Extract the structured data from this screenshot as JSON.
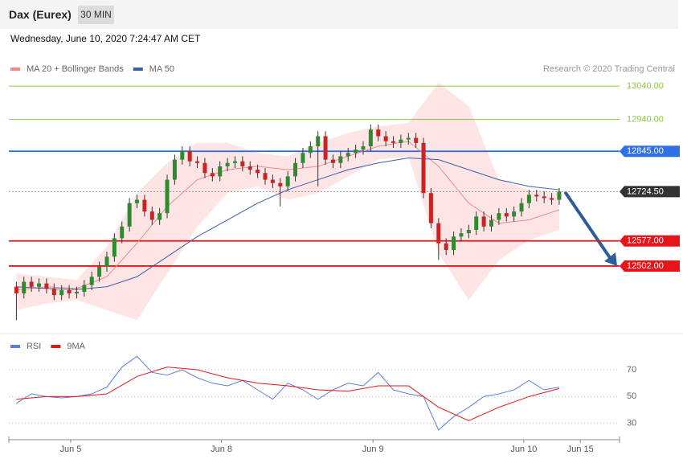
{
  "header": {
    "title": "Dax (Eurex)",
    "interval": "30 MIN",
    "timestamp": "Wednesday, June 10, 2020 7:24:47 AM CET"
  },
  "chart_data": [
    {
      "type": "candlestick",
      "credit": "Research © 2020 Trading Central",
      "xlim": [
        0,
        81
      ],
      "ylim": [
        12312,
        13069
      ],
      "up_color": "#2e8b2e",
      "down_color": "#cc2222",
      "x": [
        1,
        2,
        3,
        4,
        5,
        6,
        7,
        8,
        9,
        10,
        11,
        12,
        13,
        14,
        15,
        16,
        17,
        18,
        19,
        20,
        21,
        22,
        23,
        24,
        25,
        26,
        27,
        28,
        29,
        30,
        31,
        32,
        33,
        34,
        35,
        36,
        37,
        38,
        39,
        40,
        41,
        42,
        43,
        44,
        45,
        46,
        47,
        48,
        49,
        50,
        51,
        52,
        53,
        54,
        55,
        56,
        57,
        58,
        59,
        60,
        61,
        62,
        63,
        64,
        65,
        66,
        67,
        68,
        69,
        70,
        71,
        72,
        73
      ],
      "open": [
        12440,
        12420,
        12455,
        12440,
        12450,
        12435,
        12415,
        12430,
        12420,
        12425,
        12445,
        12470,
        12500,
        12530,
        12585,
        12620,
        12690,
        12700,
        12665,
        12640,
        12660,
        12760,
        12820,
        12845,
        12815,
        12810,
        12780,
        12770,
        12800,
        12810,
        12815,
        12800,
        12790,
        12780,
        12760,
        12750,
        12740,
        12770,
        12810,
        12840,
        12860,
        12890,
        12820,
        12810,
        12830,
        12840,
        12850,
        12860,
        12910,
        12890,
        12875,
        12870,
        12880,
        12885,
        12870,
        12720,
        12630,
        12570,
        12550,
        12590,
        12600,
        12610,
        12650,
        12620,
        12640,
        12660,
        12650,
        12665,
        12690,
        12715,
        12710,
        12705,
        12700
      ],
      "high": [
        12455,
        12470,
        12470,
        12465,
        12465,
        12450,
        12445,
        12445,
        12440,
        12460,
        12485,
        12515,
        12545,
        12600,
        12635,
        12705,
        12715,
        12715,
        12680,
        12675,
        12775,
        12835,
        12860,
        12860,
        12830,
        12825,
        12795,
        12815,
        12825,
        12830,
        12830,
        12815,
        12805,
        12795,
        12775,
        12765,
        12785,
        12825,
        12855,
        12875,
        12905,
        12905,
        12835,
        12845,
        12855,
        12865,
        12875,
        12925,
        12925,
        12905,
        12890,
        12895,
        12900,
        12900,
        12885,
        12735,
        12645,
        12585,
        12605,
        12615,
        12625,
        12665,
        12665,
        12655,
        12675,
        12675,
        12680,
        12705,
        12730,
        12730,
        12725,
        12720,
        12735
      ],
      "low": [
        12340,
        12405,
        12425,
        12425,
        12420,
        12400,
        12400,
        12405,
        12405,
        12410,
        12430,
        12455,
        12485,
        12515,
        12570,
        12605,
        12675,
        12650,
        12625,
        12625,
        12645,
        12745,
        12805,
        12800,
        12795,
        12765,
        12755,
        12755,
        12785,
        12795,
        12785,
        12775,
        12765,
        12745,
        12735,
        12680,
        12725,
        12755,
        12795,
        12825,
        12740,
        12805,
        12795,
        12795,
        12815,
        12825,
        12835,
        12845,
        12875,
        12860,
        12855,
        12855,
        12865,
        12855,
        12705,
        12615,
        12520,
        12535,
        12535,
        12575,
        12585,
        12595,
        12605,
        12605,
        12625,
        12635,
        12635,
        12650,
        12675,
        12695,
        12690,
        12685,
        12685
      ],
      "close": [
        12420,
        12455,
        12440,
        12450,
        12435,
        12415,
        12430,
        12420,
        12425,
        12445,
        12470,
        12500,
        12530,
        12585,
        12620,
        12690,
        12700,
        12665,
        12640,
        12660,
        12760,
        12820,
        12845,
        12815,
        12810,
        12780,
        12770,
        12800,
        12810,
        12815,
        12800,
        12790,
        12780,
        12760,
        12750,
        12740,
        12770,
        12810,
        12840,
        12860,
        12890,
        12820,
        12810,
        12830,
        12840,
        12850,
        12860,
        12910,
        12890,
        12875,
        12870,
        12880,
        12885,
        12870,
        12720,
        12630,
        12570,
        12550,
        12590,
        12600,
        12610,
        12650,
        12620,
        12640,
        12660,
        12650,
        12665,
        12690,
        12715,
        12710,
        12705,
        12700,
        12724.5
      ],
      "series": [
        {
          "name": "MA 20 + Bollinger Bands",
          "color": "#f28a8a",
          "x": [
            1,
            5,
            9,
            13,
            17,
            21,
            25,
            29,
            33,
            37,
            41,
            45,
            49,
            53,
            57,
            61,
            65,
            69,
            73
          ],
          "values": [
            12430,
            12440,
            12435,
            12470,
            12570,
            12680,
            12760,
            12790,
            12800,
            12790,
            12800,
            12830,
            12860,
            12875,
            12800,
            12690,
            12630,
            12640,
            12670
          ]
        },
        {
          "name": "MA 50",
          "color": "#3b5ea8",
          "x": [
            1,
            5,
            9,
            13,
            17,
            21,
            25,
            29,
            33,
            37,
            41,
            45,
            49,
            53,
            57,
            61,
            65,
            69,
            73
          ],
          "values": [
            12440,
            12435,
            12432,
            12440,
            12470,
            12530,
            12590,
            12640,
            12690,
            12730,
            12760,
            12790,
            12810,
            12825,
            12820,
            12790,
            12760,
            12740,
            12730
          ]
        }
      ],
      "bands": {
        "color": "#fde0e0",
        "x": [
          1,
          5,
          9,
          13,
          17,
          21,
          25,
          29,
          33,
          37,
          41,
          45,
          49,
          53,
          57,
          61,
          65,
          69,
          73
        ],
        "upper": [
          12480,
          12470,
          12460,
          12560,
          12720,
          12810,
          12870,
          12870,
          12840,
          12830,
          12870,
          12900,
          12920,
          12930,
          13050,
          12980,
          12760,
          12730,
          12720
        ],
        "lower": [
          12370,
          12390,
          12400,
          12370,
          12340,
          12480,
          12620,
          12720,
          12740,
          12700,
          12720,
          12770,
          12820,
          12830,
          12540,
          12400,
          12520,
          12580,
          12610
        ]
      },
      "levels": [
        {
          "value": 13040,
          "label": "13040.00",
          "color": "#8dc63f",
          "boxed": false,
          "line_style": "solid"
        },
        {
          "value": 12940,
          "label": "12940.00",
          "color": "#8dc63f",
          "boxed": false,
          "line_style": "solid"
        },
        {
          "value": 12845,
          "label": "12845.00",
          "color": "#2f6fe8",
          "boxed": true,
          "line_style": "solid"
        },
        {
          "value": 12724.5,
          "label": "12724.50",
          "color": "#333333",
          "boxed": true,
          "line_style": "dotted"
        },
        {
          "value": 12577,
          "label": "12577.00",
          "color": "#e8141a",
          "boxed": true,
          "line_style": "solid"
        },
        {
          "value": 12502,
          "label": "12502.00",
          "color": "#e8141a",
          "boxed": true,
          "line_style": "solid"
        }
      ]
    },
    {
      "type": "line",
      "xlim": [
        0,
        81
      ],
      "ylim": [
        19,
        91
      ],
      "yticks": [
        30,
        50,
        70
      ],
      "grid": true,
      "xticks": [
        {
          "value": 8.2,
          "label": "Jun 5"
        },
        {
          "value": 28.2,
          "label": "Jun 8"
        },
        {
          "value": 48.3,
          "label": "Jun 9"
        },
        {
          "value": 68.3,
          "label": "Jun 10"
        },
        {
          "value": 75.8,
          "label": "Jun 15"
        }
      ],
      "series": [
        {
          "name": "RSI",
          "color": "#5b7fdb",
          "x": [
            1,
            3,
            5,
            7,
            9,
            11,
            13,
            15,
            17,
            19,
            21,
            23,
            25,
            27,
            29,
            31,
            33,
            35,
            37,
            39,
            41,
            43,
            45,
            47,
            49,
            51,
            53,
            55,
            57,
            59,
            61,
            63,
            65,
            67,
            69,
            71,
            73
          ],
          "values": [
            45,
            52,
            50,
            49,
            50,
            52,
            57,
            72,
            80,
            68,
            66,
            70,
            64,
            60,
            58,
            62,
            55,
            48,
            60,
            55,
            48,
            55,
            60,
            58,
            68,
            55,
            52,
            50,
            25,
            35,
            42,
            50,
            52,
            55,
            62,
            55,
            57
          ]
        },
        {
          "name": "9MA",
          "color": "#e8141a",
          "x": [
            1,
            5,
            9,
            13,
            17,
            21,
            25,
            29,
            33,
            37,
            41,
            45,
            49,
            53,
            57,
            61,
            65,
            69,
            73
          ],
          "values": [
            48,
            50,
            50,
            52,
            65,
            72,
            70,
            64,
            60,
            58,
            55,
            54,
            58,
            58,
            42,
            32,
            42,
            50,
            56
          ]
        }
      ]
    }
  ]
}
